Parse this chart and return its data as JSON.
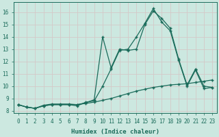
{
  "xlabel": "Humidex (Indice chaleur)",
  "bg_color": "#cce8e0",
  "grid_color": "#d8ece6",
  "line_color": "#1a6b5a",
  "xlim": [
    -0.5,
    23.5
  ],
  "ylim": [
    7.8,
    16.8
  ],
  "xticks": [
    0,
    1,
    2,
    3,
    4,
    5,
    6,
    7,
    8,
    9,
    10,
    11,
    12,
    13,
    14,
    15,
    16,
    17,
    18,
    19,
    20,
    21,
    22,
    23
  ],
  "yticks": [
    8,
    9,
    10,
    11,
    12,
    13,
    14,
    15,
    16
  ],
  "series1_x": [
    0,
    1,
    2,
    3,
    4,
    5,
    6,
    7,
    8,
    9,
    10,
    11,
    12,
    13,
    14,
    15,
    16,
    17,
    18,
    19,
    20,
    21,
    22,
    23
  ],
  "series1_y": [
    8.5,
    8.3,
    8.2,
    8.4,
    8.5,
    8.5,
    8.5,
    8.4,
    8.7,
    8.8,
    10.0,
    11.4,
    12.9,
    13.0,
    14.0,
    15.1,
    16.3,
    15.2,
    14.5,
    12.1,
    10.0,
    11.3,
    9.8,
    9.9
  ],
  "series2_x": [
    0,
    1,
    2,
    3,
    4,
    5,
    6,
    7,
    8,
    9,
    10,
    11,
    12,
    13,
    14,
    15,
    16,
    17,
    18,
    19,
    20,
    21,
    22,
    23
  ],
  "series2_y": [
    8.5,
    8.3,
    8.2,
    8.45,
    8.55,
    8.55,
    8.55,
    8.5,
    8.65,
    8.9,
    14.0,
    11.5,
    13.0,
    12.9,
    13.0,
    15.0,
    16.1,
    15.5,
    14.7,
    12.2,
    10.1,
    11.4,
    10.0,
    9.9
  ],
  "series3_x": [
    0,
    1,
    2,
    3,
    4,
    5,
    6,
    7,
    8,
    9,
    10,
    11,
    12,
    13,
    14,
    15,
    16,
    17,
    18,
    19,
    20,
    21,
    22,
    23
  ],
  "series3_y": [
    8.5,
    8.3,
    8.2,
    8.4,
    8.5,
    8.5,
    8.5,
    8.5,
    8.6,
    8.7,
    8.85,
    9.0,
    9.2,
    9.4,
    9.6,
    9.75,
    9.9,
    10.0,
    10.1,
    10.15,
    10.2,
    10.3,
    10.4,
    10.5
  ]
}
